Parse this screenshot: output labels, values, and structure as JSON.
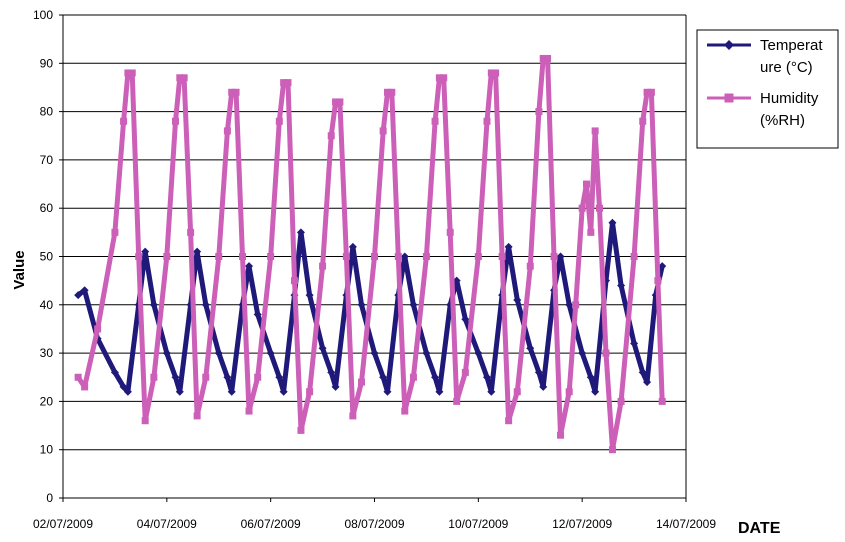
{
  "chart_data": {
    "type": "line",
    "ylabel": "Value",
    "xlabel": "DATE",
    "ylim": [
      0,
      100
    ],
    "yticks": [
      0,
      10,
      20,
      30,
      40,
      50,
      60,
      70,
      80,
      90,
      100
    ],
    "xlim": [
      "2009-07-02",
      "2009-07-14"
    ],
    "xticks": [
      "2009-07-02",
      "2009-07-04",
      "2009-07-06",
      "2009-07-08",
      "2009-07-10",
      "2009-07-12",
      "2009-07-14"
    ],
    "xtick_labels": [
      "02/07/2009",
      "04/07/2009",
      "06/07/2009",
      "08/07/2009",
      "10/07/2009",
      "12/07/2009",
      "14/07/2009"
    ],
    "grid": "horizontal",
    "legend_position": "right",
    "series": [
      {
        "name": "Temperat ure (°C)",
        "color": "#1f1a7a",
        "marker": "diamond",
        "points": [
          [
            "2009-07-02 07:00",
            42
          ],
          [
            "2009-07-02 10:00",
            43
          ],
          [
            "2009-07-02 16:00",
            33
          ],
          [
            "2009-07-03 00:00",
            26
          ],
          [
            "2009-07-03 04:00",
            23
          ],
          [
            "2009-07-03 06:00",
            22
          ],
          [
            "2009-07-03 11:00",
            40
          ],
          [
            "2009-07-03 14:00",
            51
          ],
          [
            "2009-07-03 18:00",
            40
          ],
          [
            "2009-07-04 00:00",
            30
          ],
          [
            "2009-07-04 04:00",
            25
          ],
          [
            "2009-07-04 06:00",
            22
          ],
          [
            "2009-07-04 11:00",
            40
          ],
          [
            "2009-07-04 14:00",
            51
          ],
          [
            "2009-07-04 18:00",
            40
          ],
          [
            "2009-07-05 00:00",
            30
          ],
          [
            "2009-07-05 04:00",
            25
          ],
          [
            "2009-07-05 06:00",
            22
          ],
          [
            "2009-07-05 11:00",
            40
          ],
          [
            "2009-07-05 14:00",
            48
          ],
          [
            "2009-07-05 18:00",
            38
          ],
          [
            "2009-07-06 00:00",
            30
          ],
          [
            "2009-07-06 04:00",
            25
          ],
          [
            "2009-07-06 06:00",
            22
          ],
          [
            "2009-07-06 11:00",
            42
          ],
          [
            "2009-07-06 14:00",
            55
          ],
          [
            "2009-07-06 18:00",
            42
          ],
          [
            "2009-07-07 00:00",
            31
          ],
          [
            "2009-07-07 04:00",
            26
          ],
          [
            "2009-07-07 06:00",
            23
          ],
          [
            "2009-07-07 11:00",
            42
          ],
          [
            "2009-07-07 14:00",
            52
          ],
          [
            "2009-07-07 18:00",
            40
          ],
          [
            "2009-07-08 00:00",
            30
          ],
          [
            "2009-07-08 04:00",
            25
          ],
          [
            "2009-07-08 06:00",
            22
          ],
          [
            "2009-07-08 11:00",
            42
          ],
          [
            "2009-07-08 14:00",
            50
          ],
          [
            "2009-07-08 18:00",
            40
          ],
          [
            "2009-07-09 00:00",
            30
          ],
          [
            "2009-07-09 04:00",
            25
          ],
          [
            "2009-07-09 06:00",
            22
          ],
          [
            "2009-07-09 11:00",
            40
          ],
          [
            "2009-07-09 14:00",
            45
          ],
          [
            "2009-07-09 18:00",
            37
          ],
          [
            "2009-07-10 00:00",
            30
          ],
          [
            "2009-07-10 04:00",
            25
          ],
          [
            "2009-07-10 06:00",
            22
          ],
          [
            "2009-07-10 11:00",
            42
          ],
          [
            "2009-07-10 14:00",
            52
          ],
          [
            "2009-07-10 18:00",
            41
          ],
          [
            "2009-07-11 00:00",
            31
          ],
          [
            "2009-07-11 04:00",
            26
          ],
          [
            "2009-07-11 06:00",
            23
          ],
          [
            "2009-07-11 11:00",
            43
          ],
          [
            "2009-07-11 14:00",
            50
          ],
          [
            "2009-07-11 18:00",
            40
          ],
          [
            "2009-07-12 00:00",
            30
          ],
          [
            "2009-07-12 04:00",
            25
          ],
          [
            "2009-07-12 06:00",
            22
          ],
          [
            "2009-07-12 11:00",
            45
          ],
          [
            "2009-07-12 14:00",
            57
          ],
          [
            "2009-07-12 18:00",
            44
          ],
          [
            "2009-07-13 00:00",
            32
          ],
          [
            "2009-07-13 04:00",
            26
          ],
          [
            "2009-07-13 06:00",
            24
          ],
          [
            "2009-07-13 10:00",
            42
          ],
          [
            "2009-07-13 13:00",
            48
          ]
        ]
      },
      {
        "name": "Humidity (%RH)",
        "color": "#cc5fb8",
        "marker": "square",
        "points": [
          [
            "2009-07-02 07:00",
            25
          ],
          [
            "2009-07-02 10:00",
            23
          ],
          [
            "2009-07-02 16:00",
            35
          ],
          [
            "2009-07-03 00:00",
            55
          ],
          [
            "2009-07-03 04:00",
            78
          ],
          [
            "2009-07-03 06:00",
            88
          ],
          [
            "2009-07-03 08:00",
            88
          ],
          [
            "2009-07-03 11:00",
            50
          ],
          [
            "2009-07-03 14:00",
            16
          ],
          [
            "2009-07-03 18:00",
            25
          ],
          [
            "2009-07-04 00:00",
            50
          ],
          [
            "2009-07-04 04:00",
            78
          ],
          [
            "2009-07-04 06:00",
            87
          ],
          [
            "2009-07-04 08:00",
            87
          ],
          [
            "2009-07-04 11:00",
            55
          ],
          [
            "2009-07-04 14:00",
            17
          ],
          [
            "2009-07-04 18:00",
            25
          ],
          [
            "2009-07-05 00:00",
            50
          ],
          [
            "2009-07-05 04:00",
            76
          ],
          [
            "2009-07-05 06:00",
            84
          ],
          [
            "2009-07-05 08:00",
            84
          ],
          [
            "2009-07-05 11:00",
            50
          ],
          [
            "2009-07-05 14:00",
            18
          ],
          [
            "2009-07-05 18:00",
            25
          ],
          [
            "2009-07-06 00:00",
            50
          ],
          [
            "2009-07-06 04:00",
            78
          ],
          [
            "2009-07-06 06:00",
            86
          ],
          [
            "2009-07-06 08:00",
            86
          ],
          [
            "2009-07-06 11:00",
            45
          ],
          [
            "2009-07-06 14:00",
            14
          ],
          [
            "2009-07-06 18:00",
            22
          ],
          [
            "2009-07-07 00:00",
            48
          ],
          [
            "2009-07-07 04:00",
            75
          ],
          [
            "2009-07-07 06:00",
            82
          ],
          [
            "2009-07-07 08:00",
            82
          ],
          [
            "2009-07-07 11:00",
            50
          ],
          [
            "2009-07-07 14:00",
            17
          ],
          [
            "2009-07-07 18:00",
            24
          ],
          [
            "2009-07-08 00:00",
            50
          ],
          [
            "2009-07-08 04:00",
            76
          ],
          [
            "2009-07-08 06:00",
            84
          ],
          [
            "2009-07-08 08:00",
            84
          ],
          [
            "2009-07-08 11:00",
            50
          ],
          [
            "2009-07-08 14:00",
            18
          ],
          [
            "2009-07-08 18:00",
            25
          ],
          [
            "2009-07-09 00:00",
            50
          ],
          [
            "2009-07-09 04:00",
            78
          ],
          [
            "2009-07-09 06:00",
            87
          ],
          [
            "2009-07-09 08:00",
            87
          ],
          [
            "2009-07-09 11:00",
            55
          ],
          [
            "2009-07-09 14:00",
            20
          ],
          [
            "2009-07-09 18:00",
            26
          ],
          [
            "2009-07-10 00:00",
            50
          ],
          [
            "2009-07-10 04:00",
            78
          ],
          [
            "2009-07-10 06:00",
            88
          ],
          [
            "2009-07-10 08:00",
            88
          ],
          [
            "2009-07-10 11:00",
            50
          ],
          [
            "2009-07-10 14:00",
            16
          ],
          [
            "2009-07-10 18:00",
            22
          ],
          [
            "2009-07-11 00:00",
            48
          ],
          [
            "2009-07-11 04:00",
            80
          ],
          [
            "2009-07-11 06:00",
            91
          ],
          [
            "2009-07-11 08:00",
            91
          ],
          [
            "2009-07-11 11:00",
            50
          ],
          [
            "2009-07-11 14:00",
            13
          ],
          [
            "2009-07-11 18:00",
            22
          ],
          [
            "2009-07-11 21:00",
            40
          ],
          [
            "2009-07-12 00:00",
            60
          ],
          [
            "2009-07-12 02:00",
            65
          ],
          [
            "2009-07-12 04:00",
            55
          ],
          [
            "2009-07-12 06:00",
            76
          ],
          [
            "2009-07-12 08:00",
            60
          ],
          [
            "2009-07-12 11:00",
            30
          ],
          [
            "2009-07-12 14:00",
            10
          ],
          [
            "2009-07-12 18:00",
            20
          ],
          [
            "2009-07-13 00:00",
            50
          ],
          [
            "2009-07-13 04:00",
            78
          ],
          [
            "2009-07-13 06:00",
            84
          ],
          [
            "2009-07-13 08:00",
            84
          ],
          [
            "2009-07-13 11:00",
            45
          ],
          [
            "2009-07-13 13:00",
            20
          ]
        ]
      }
    ]
  }
}
